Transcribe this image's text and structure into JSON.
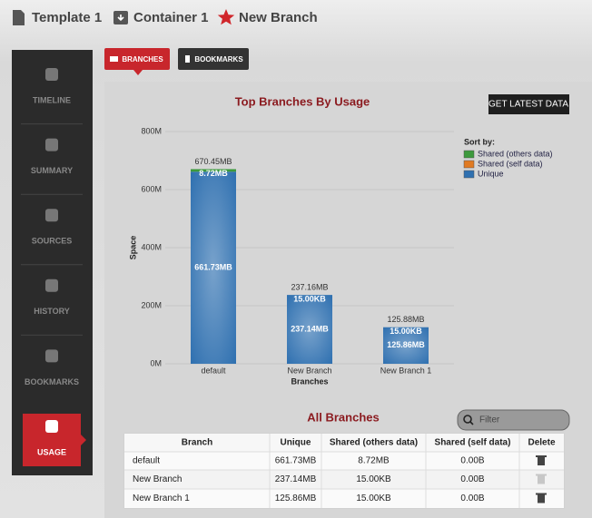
{
  "breadcrumb": [
    "Template 1",
    "Container 1",
    "New Branch"
  ],
  "sidebar": {
    "items": [
      "TIMELINE",
      "SUMMARY",
      "SOURCES",
      "HISTORY",
      "BOOKMARKS",
      "USAGE"
    ]
  },
  "tabs": [
    "BRANCHES",
    "BOOKMARKS"
  ],
  "button": "GET LATEST DATA",
  "chart_data": {
    "type": "bar",
    "stacked": true,
    "title": "Top Branches By Usage",
    "x_label": "Branches",
    "y_label": "Space",
    "legend_title": "Sort by:",
    "categories": [
      "default",
      "New Branch",
      "New Branch 1"
    ],
    "series": [
      {
        "name": "Shared (others data)",
        "color": "#3d9a3d",
        "values": [
          8.72,
          0.015,
          0.015
        ],
        "value_labels": [
          "8.72MB",
          "15.00KB",
          "15.00KB"
        ]
      },
      {
        "name": "Shared (self data)",
        "color": "#e07a22",
        "values": [
          0,
          0,
          0
        ]
      },
      {
        "name": "Unique",
        "color": "#2f70b0",
        "values": [
          661.73,
          237.14,
          125.86
        ],
        "value_labels": [
          "661.73MB",
          "237.14MB",
          "125.86MB"
        ]
      }
    ],
    "totals": [
      670.45,
      237.16,
      125.88
    ],
    "total_labels": [
      "670.45MB",
      "237.16MB",
      "125.88MB"
    ],
    "ylim": [
      0,
      800
    ],
    "yticks": [
      {
        "value": 0,
        "label": "0M"
      },
      {
        "value": 200,
        "label": "200M"
      },
      {
        "value": 400,
        "label": "400M"
      },
      {
        "value": 600,
        "label": "600M"
      },
      {
        "value": 800,
        "label": "800M"
      }
    ],
    "grid": true
  },
  "table": {
    "title": "All Branches",
    "filter_placeholder": "Filter",
    "header": [
      "Branch",
      "Unique",
      "Shared (others data)",
      "Shared (self data)",
      "Delete"
    ],
    "rows": [
      [
        "default",
        "661.73MB",
        "8.72MB",
        "0.00B"
      ],
      [
        "New Branch",
        "237.14MB",
        "15.00KB",
        "0.00B"
      ],
      [
        "New Branch 1",
        "125.86MB",
        "15.00KB",
        "0.00B"
      ]
    ]
  }
}
